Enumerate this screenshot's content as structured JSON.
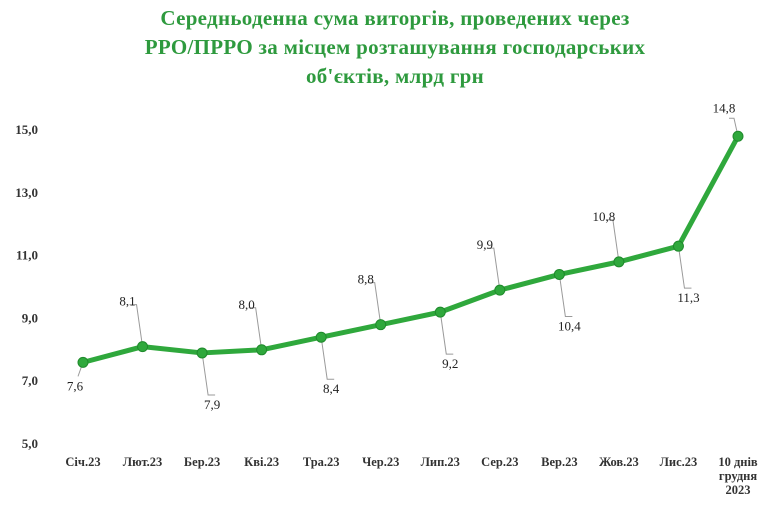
{
  "chart_data": {
    "type": "line",
    "title_lines": [
      "Середньоденна  сума виторгів, проведених через",
      "РРО/ПРРО за місцем розташування господарських",
      "об'єктів, млрд грн"
    ],
    "categories": [
      [
        "Січ.23"
      ],
      [
        "Лют.23"
      ],
      [
        "Бер.23"
      ],
      [
        "Кві.23"
      ],
      [
        "Тра.23"
      ],
      [
        "Чер.23"
      ],
      [
        "Лип.23"
      ],
      [
        "Сер.23"
      ],
      [
        "Вер.23"
      ],
      [
        "Жов.23"
      ],
      [
        "Лис.23"
      ],
      [
        "10 днів",
        "грудня",
        "2023"
      ]
    ],
    "values": [
      7.6,
      8.1,
      7.9,
      8.0,
      8.4,
      8.8,
      9.2,
      9.9,
      10.4,
      10.8,
      11.3,
      14.8
    ],
    "value_labels": [
      "7,6",
      "8,1",
      "7,9",
      "8,0",
      "8,4",
      "8,8",
      "9,2",
      "9,9",
      "10,4",
      "10,8",
      "11,3",
      "14,8"
    ],
    "label_placement": [
      "below",
      "above",
      "below",
      "above",
      "below",
      "above",
      "below",
      "above",
      "below",
      "above",
      "below",
      "above"
    ],
    "y_ticks": [
      5.0,
      7.0,
      9.0,
      11.0,
      13.0,
      15.0
    ],
    "y_tick_labels": [
      "5,0",
      "7,0",
      "9,0",
      "11,0",
      "13,0",
      "15,0"
    ],
    "ylim": [
      5.0,
      15.0
    ],
    "grid": false,
    "legend": "none",
    "colors": {
      "line": "#2fa83c",
      "marker": "#2fa83c",
      "title": "#2e9a3e"
    }
  }
}
